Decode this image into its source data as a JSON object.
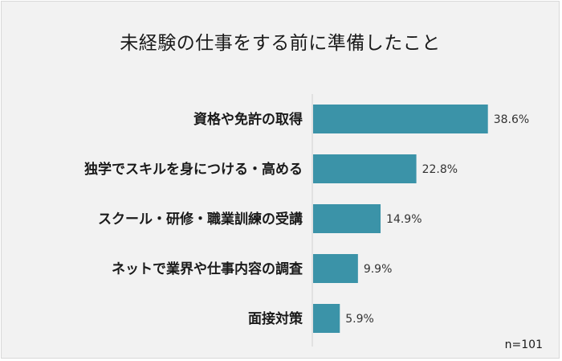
{
  "chart_data": {
    "type": "bar",
    "orientation": "horizontal",
    "title": "未経験の仕事をする前に準備したこと",
    "categories": [
      "資格や免許の取得",
      "独学でスキルを身につける・高める",
      "スクール・研修・職業訓練の受講",
      "ネットで業界や仕事内容の調査",
      "面接対策"
    ],
    "values": [
      38.6,
      22.8,
      14.9,
      9.9,
      5.9
    ],
    "value_labels": [
      "38.6%",
      "22.8%",
      "14.9%",
      "9.9%",
      "5.9%"
    ],
    "unit": "%",
    "sample_note": "n=101",
    "bar_color": "#3b93a8",
    "background_color": "#f2f2f2",
    "grid": false,
    "legend": "none"
  }
}
